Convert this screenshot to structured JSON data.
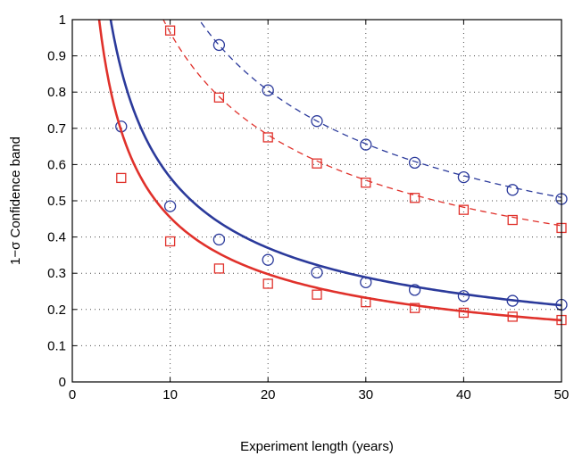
{
  "chart_data": {
    "type": "line",
    "title": "",
    "xlabel": "Experiment length (years)",
    "ylabel": "1−σ Confidence band",
    "xlim": [
      0,
      50
    ],
    "ylim": [
      0,
      1
    ],
    "xticks": [
      0,
      10,
      20,
      30,
      40,
      50
    ],
    "yticks": [
      0,
      0.1,
      0.2,
      0.3,
      0.4,
      0.5,
      0.6,
      0.7,
      0.8,
      0.9,
      1
    ],
    "ytick_labels": [
      "0",
      "0.1",
      "0.2",
      "0.3",
      "0.4",
      "0.5",
      "0.6",
      "0.7",
      "0.8",
      "0.9",
      "1"
    ],
    "grid": true,
    "series": [
      {
        "color": "#2b3a9b",
        "line_style": "dashed",
        "marker": "circle",
        "curve": {
          "k": 3.6,
          "p": 0.5
        },
        "markers": [
          {
            "x": 15,
            "y": 0.93
          },
          {
            "x": 20,
            "y": 0.805
          },
          {
            "x": 25,
            "y": 0.72
          },
          {
            "x": 30,
            "y": 0.655
          },
          {
            "x": 35,
            "y": 0.605
          },
          {
            "x": 40,
            "y": 0.565
          },
          {
            "x": 45,
            "y": 0.53
          },
          {
            "x": 50,
            "y": 0.505
          }
        ]
      },
      {
        "color": "#e0312b",
        "line_style": "dashed",
        "marker": "square",
        "curve": {
          "k": 3.05,
          "p": 0.5
        },
        "markers": [
          {
            "x": 10,
            "y": 0.97
          },
          {
            "x": 15,
            "y": 0.785
          },
          {
            "x": 20,
            "y": 0.675
          },
          {
            "x": 25,
            "y": 0.603
          },
          {
            "x": 30,
            "y": 0.55
          },
          {
            "x": 35,
            "y": 0.508
          },
          {
            "x": 40,
            "y": 0.475
          },
          {
            "x": 45,
            "y": 0.447
          },
          {
            "x": 50,
            "y": 0.425
          }
        ]
      },
      {
        "color": "#2b3a9b",
        "line_style": "solid",
        "marker": "circle",
        "curve": {
          "k": 2.3,
          "p": 0.61
        },
        "markers": [
          {
            "x": 5,
            "y": 0.705
          },
          {
            "x": 10,
            "y": 0.485
          },
          {
            "x": 15,
            "y": 0.393
          },
          {
            "x": 20,
            "y": 0.337
          },
          {
            "x": 25,
            "y": 0.302
          },
          {
            "x": 30,
            "y": 0.275
          },
          {
            "x": 35,
            "y": 0.254
          },
          {
            "x": 40,
            "y": 0.237
          },
          {
            "x": 45,
            "y": 0.224
          },
          {
            "x": 50,
            "y": 0.213
          }
        ]
      },
      {
        "color": "#e0312b",
        "line_style": "solid",
        "marker": "square",
        "curve": {
          "k": 1.85,
          "p": 0.61
        },
        "markers": [
          {
            "x": 5,
            "y": 0.563
          },
          {
            "x": 10,
            "y": 0.388
          },
          {
            "x": 15,
            "y": 0.313
          },
          {
            "x": 20,
            "y": 0.271
          },
          {
            "x": 25,
            "y": 0.241
          },
          {
            "x": 30,
            "y": 0.22
          },
          {
            "x": 35,
            "y": 0.204
          },
          {
            "x": 40,
            "y": 0.191
          },
          {
            "x": 45,
            "y": 0.18
          },
          {
            "x": 50,
            "y": 0.171
          }
        ]
      }
    ]
  }
}
